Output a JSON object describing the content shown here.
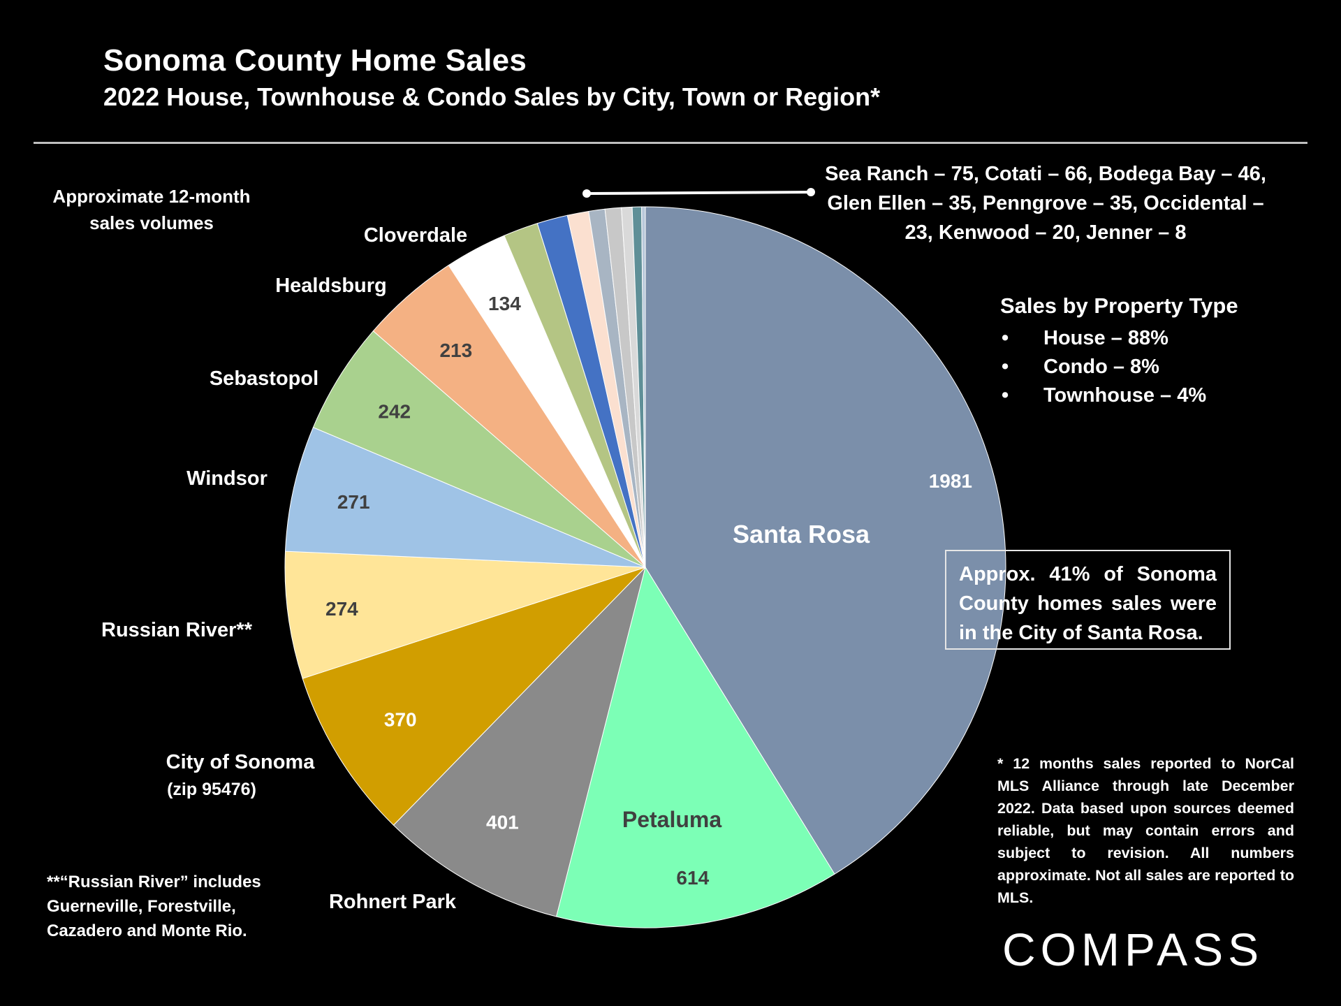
{
  "header": {
    "title": "Sonoma County Home Sales",
    "subtitle": "2022 House, Townhouse & Condo Sales by City, Town or Region*"
  },
  "notes": {
    "volumes_label": "Approximate 12-month sales volumes",
    "small_cities": "Sea Ranch – 75, Cotati – 66, Bodega Bay – 46, Glen Ellen – 35, Penngrove – 35, Occidental – 23, Kenwood – 20, Jenner – 8",
    "callout": "Approx. 41% of Sonoma County homes sales were in the City of Santa Rosa.",
    "footnote": "* 12 months sales reported to NorCal MLS Alliance through late December 2022. Data based upon sources deemed reliable, but may contain errors and subject to revision. All numbers approximate. Not all sales are reported to MLS.",
    "russian_river_note": "**“Russian River” includes Guerneville, Forestville, Cazadero and Monte Rio."
  },
  "property_type": {
    "heading": "Sales by Property Type",
    "items": [
      "House – 88%",
      "Condo – 8%",
      "Townhouse – 4%"
    ]
  },
  "logo": {
    "text": "COMPASS"
  },
  "chart_data": {
    "type": "pie",
    "title": "",
    "total_share_note": "",
    "slices": [
      {
        "name": "Santa Rosa",
        "value": 1981,
        "color": "#7b8faa",
        "name_label": "Santa Rosa",
        "value_label": "1981"
      },
      {
        "name": "Petaluma",
        "value": 614,
        "color": "#7cffb6",
        "name_label": "Petaluma",
        "value_label": "614"
      },
      {
        "name": "Rohnert Park",
        "value": 401,
        "color": "#8a8a8a",
        "name_label": "Rohnert Park",
        "value_label": "401"
      },
      {
        "name": "City of Sonoma",
        "value": 370,
        "color": "#d19e00",
        "name_label": "City of Sonoma",
        "name_sublabel": "(zip 95476)",
        "value_label": "370"
      },
      {
        "name": "Russian River**",
        "value": 274,
        "color": "#ffe598",
        "name_label": "Russian River**",
        "value_label": "274"
      },
      {
        "name": "Windsor",
        "value": 271,
        "color": "#9fc3e6",
        "name_label": "Windsor",
        "value_label": "271"
      },
      {
        "name": "Sebastopol",
        "value": 242,
        "color": "#a9d18e",
        "name_label": "Sebastopol",
        "value_label": "242"
      },
      {
        "name": "Healdsburg",
        "value": 213,
        "color": "#f4b183",
        "name_label": "Healdsburg",
        "value_label": "213"
      },
      {
        "name": "Cloverdale",
        "value": 134,
        "color": "#ffffff",
        "name_label": "Cloverdale",
        "value_label": "134"
      },
      {
        "name": "Sea Ranch",
        "value": 75,
        "color": "#b4c584"
      },
      {
        "name": "Cotati",
        "value": 66,
        "color": "#4472c4"
      },
      {
        "name": "Bodega Bay",
        "value": 46,
        "color": "#fbe0d0"
      },
      {
        "name": "Glen Ellen",
        "value": 35,
        "color": "#a8b5c3"
      },
      {
        "name": "Penngrove",
        "value": 35,
        "color": "#c8c8c8"
      },
      {
        "name": "Occidental",
        "value": 23,
        "color": "#d9d9d9"
      },
      {
        "name": "Kenwood",
        "value": 20,
        "color": "#5f8f97"
      },
      {
        "name": "Jenner",
        "value": 8,
        "color": "#b8c8da"
      }
    ]
  }
}
